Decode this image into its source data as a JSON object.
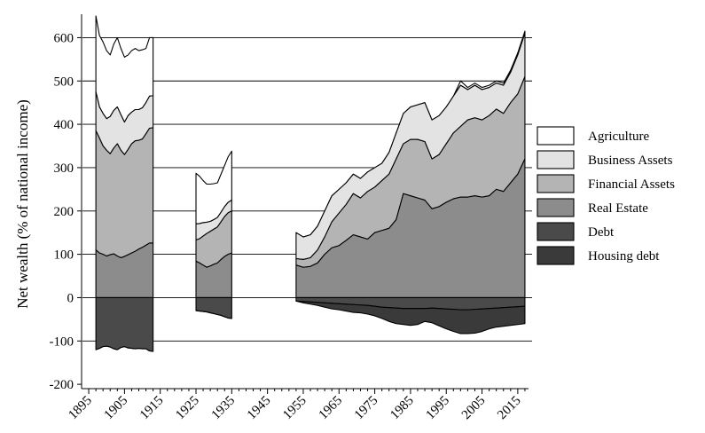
{
  "chart_data": {
    "type": "area",
    "title": "",
    "xlabel": "",
    "ylabel": "Net wealth (% of national income)",
    "ylim": [
      -210,
      650
    ],
    "xlim": [
      1893,
      2019
    ],
    "yticks": [
      600,
      500,
      400,
      300,
      200,
      100,
      0,
      -100,
      -200
    ],
    "ytick_labels": [
      "600",
      "500",
      "400",
      "300",
      "200",
      "100",
      "0",
      "-100",
      "-200"
    ],
    "xticks": [
      1895,
      1905,
      1915,
      1925,
      1935,
      1945,
      1955,
      1965,
      1975,
      1985,
      1995,
      2005,
      2015
    ],
    "xtick_labels": [
      "1895",
      "1905",
      "1915",
      "1925",
      "1935",
      "1945",
      "1955",
      "1965",
      "1975",
      "1985",
      "1995",
      "2005",
      "2015"
    ],
    "grid": "horizontal",
    "legend_position": "right",
    "legend": [
      "Agriculture",
      "Business Assets",
      "Financial Assets",
      "Real Estate",
      "Debt",
      "Housing debt"
    ],
    "colors": {
      "Agriculture": "#ffffff",
      "Business Assets": "#e3e3e3",
      "Financial Assets": "#b4b4b4",
      "Real Estate": "#8c8c8c",
      "Debt": "#4a4a4a",
      "Housing debt": "#3a3a3a"
    },
    "segments": [
      {
        "x": [
          1897,
          1898,
          1899,
          1900,
          1901,
          1902,
          1903,
          1904,
          1905,
          1906,
          1907,
          1908,
          1909,
          1910,
          1911,
          1912,
          1913
        ],
        "real_estate": [
          110,
          103,
          100,
          96,
          99,
          101,
          96,
          92,
          95,
          99,
          103,
          107,
          112,
          116,
          121,
          126,
          126
        ],
        "financial_cum": [
          385,
          368,
          350,
          340,
          332,
          345,
          355,
          340,
          330,
          342,
          355,
          362,
          363,
          366,
          378,
          391,
          392
        ],
        "business_cum": [
          475,
          440,
          425,
          413,
          418,
          432,
          440,
          422,
          405,
          420,
          428,
          434,
          434,
          438,
          450,
          465,
          466
        ],
        "agriculture_cum": [
          650,
          605,
          590,
          570,
          560,
          585,
          600,
          575,
          555,
          560,
          570,
          575,
          570,
          572,
          575,
          600,
          600
        ],
        "debt": [
          -120,
          -117,
          -113,
          -112,
          -114,
          -118,
          -120,
          -115,
          -113,
          -116,
          -117,
          -118,
          -117,
          -118,
          -118,
          -123,
          -124
        ],
        "housing_debt": [
          -120,
          -117,
          -113,
          -112,
          -114,
          -118,
          -120,
          -115,
          -113,
          -116,
          -117,
          -118,
          -117,
          -118,
          -118,
          -123,
          -124
        ]
      },
      {
        "x": [
          1925,
          1926,
          1927,
          1928,
          1929,
          1930,
          1931,
          1932,
          1933,
          1934,
          1935
        ],
        "real_estate": [
          84,
          80,
          75,
          70,
          73,
          77,
          80,
          88,
          95,
          100,
          103
        ],
        "financial_cum": [
          133,
          136,
          142,
          148,
          153,
          158,
          163,
          175,
          187,
          196,
          200
        ],
        "business_cum": [
          170,
          171,
          173,
          174,
          176,
          180,
          185,
          197,
          210,
          220,
          225
        ],
        "agriculture_cum": [
          287,
          280,
          270,
          262,
          262,
          263,
          265,
          285,
          305,
          325,
          338
        ],
        "debt": [
          -30,
          -31,
          -32,
          -33,
          -35,
          -37,
          -39,
          -41,
          -44,
          -47,
          -48
        ],
        "housing_debt": [
          -30,
          -31,
          -32,
          -33,
          -35,
          -37,
          -39,
          -41,
          -44,
          -47,
          -48
        ]
      },
      {
        "x": [
          1953,
          1955,
          1957,
          1959,
          1961,
          1963,
          1965,
          1967,
          1969,
          1971,
          1973,
          1975,
          1977,
          1979,
          1981,
          1983,
          1985,
          1987,
          1989,
          1991,
          1993,
          1995,
          1997,
          1999,
          2001,
          2003,
          2005,
          2007,
          2009,
          2011,
          2013,
          2015,
          2017
        ],
        "real_estate": [
          75,
          70,
          72,
          80,
          100,
          115,
          120,
          132,
          145,
          140,
          135,
          150,
          155,
          160,
          180,
          240,
          235,
          230,
          225,
          205,
          210,
          220,
          228,
          232,
          232,
          235,
          232,
          235,
          250,
          245,
          265,
          285,
          320
        ],
        "financial_cum": [
          90,
          88,
          92,
          110,
          140,
          175,
          195,
          215,
          240,
          230,
          245,
          255,
          270,
          285,
          320,
          355,
          365,
          365,
          360,
          320,
          330,
          355,
          380,
          395,
          410,
          415,
          410,
          420,
          435,
          425,
          450,
          470,
          510
        ],
        "business_cum": [
          150,
          140,
          145,
          165,
          200,
          235,
          250,
          265,
          285,
          275,
          290,
          300,
          310,
          335,
          380,
          425,
          440,
          445,
          450,
          410,
          420,
          440,
          465,
          490,
          480,
          490,
          480,
          485,
          495,
          490,
          520,
          560,
          610
        ],
        "agriculture_cum": [
          150,
          140,
          145,
          165,
          200,
          235,
          250,
          265,
          285,
          275,
          290,
          300,
          310,
          335,
          380,
          425,
          440,
          445,
          450,
          410,
          420,
          440,
          465,
          500,
          485,
          495,
          485,
          490,
          500,
          495,
          525,
          565,
          615
        ],
        "debt": [
          -8,
          -9,
          -10,
          -11,
          -12,
          -13,
          -14,
          -15,
          -16,
          -17,
          -18,
          -20,
          -22,
          -23,
          -24,
          -25,
          -25,
          -25,
          -25,
          -24,
          -25,
          -26,
          -27,
          -28,
          -28,
          -27,
          -26,
          -25,
          -24,
          -23,
          -22,
          -21,
          -20
        ],
        "housing_debt": [
          -8,
          -12,
          -15,
          -18,
          -22,
          -26,
          -28,
          -31,
          -34,
          -35,
          -38,
          -42,
          -48,
          -55,
          -60,
          -62,
          -64,
          -62,
          -55,
          -58,
          -65,
          -72,
          -78,
          -83,
          -83,
          -82,
          -78,
          -72,
          -68,
          -66,
          -64,
          -62,
          -60
        ]
      }
    ]
  }
}
